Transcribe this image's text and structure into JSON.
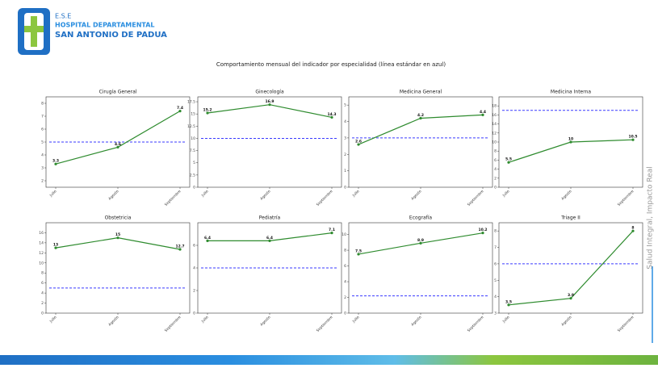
{
  "header": {
    "org": "E.S.E",
    "line1": "HOSPITAL DEPARTAMENTAL",
    "line2": "SAN ANTONIO DE PADUA",
    "title": "Comportamiento mensual del indicador por especialidad (línea estándar en azul)",
    "slogan": "Salud Integral, Impacto Real"
  },
  "chart_data": [
    {
      "type": "line",
      "title": "Cirugía General",
      "categories": [
        "Julio",
        "Agosto",
        "Septiembre"
      ],
      "values": [
        3.3,
        4.6,
        7.4
      ],
      "color": "#2e8b2e",
      "standard": 5,
      "standard_color": "#3a3aff",
      "ylim": [
        1.5,
        8.5
      ],
      "yticks": [
        2,
        3,
        4,
        5,
        6,
        7,
        8
      ]
    },
    {
      "type": "line",
      "title": "Ginecología",
      "categories": [
        "Julio",
        "Agosto",
        "Septiembre"
      ],
      "values": [
        15.2,
        16.9,
        14.3
      ],
      "color": "#2e8b2e",
      "standard": 10,
      "standard_color": "#3a3aff",
      "ylim": [
        0,
        18.5
      ],
      "yticks": [
        0,
        2.5,
        5,
        7.5,
        10,
        12.5,
        15,
        17.5
      ]
    },
    {
      "type": "line",
      "title": "Medicina General",
      "categories": [
        "Julio",
        "Agosto",
        "Septiembre"
      ],
      "values": [
        2.6,
        4.2,
        4.4
      ],
      "color": "#2e8b2e",
      "standard": 3,
      "standard_color": "#3a3aff",
      "ylim": [
        0,
        5.5
      ],
      "yticks": [
        0,
        1,
        2,
        3,
        4,
        5
      ]
    },
    {
      "type": "line",
      "title": "Medicina Interna",
      "categories": [
        "Julio",
        "Agosto",
        "Septiembre"
      ],
      "values": [
        5.5,
        10,
        10.5
      ],
      "color": "#2e8b2e",
      "standard": 17,
      "standard_color": "#3a3aff",
      "ylim": [
        0,
        20
      ],
      "yticks": [
        0,
        2,
        4,
        6,
        8,
        10,
        12,
        14,
        16,
        18
      ]
    },
    {
      "type": "line",
      "title": "Obstetricia",
      "categories": [
        "Julio",
        "Agosto",
        "Septiembre"
      ],
      "values": [
        13,
        15,
        12.7
      ],
      "color": "#2e8b2e",
      "standard": 5,
      "standard_color": "#3a3aff",
      "ylim": [
        0,
        18
      ],
      "yticks": [
        0,
        2,
        4,
        6,
        8,
        10,
        12,
        14,
        16
      ]
    },
    {
      "type": "line",
      "title": "Pediatría",
      "categories": [
        "Julio",
        "Agosto",
        "Septiembre"
      ],
      "values": [
        6.4,
        6.4,
        7.1
      ],
      "color": "#2e8b2e",
      "standard": 4,
      "standard_color": "#3a3aff",
      "ylim": [
        0,
        8
      ],
      "yticks": [
        0,
        2,
        4,
        6
      ]
    },
    {
      "type": "line",
      "title": "Ecografía",
      "categories": [
        "Julio",
        "Agosto",
        "Septiembre"
      ],
      "values": [
        7.5,
        8.9,
        10.2
      ],
      "color": "#2e8b2e",
      "standard": 2.2,
      "standard_color": "#3a3aff",
      "ylim": [
        0,
        11.5
      ],
      "yticks": [
        0,
        2,
        4,
        6,
        8,
        10
      ]
    },
    {
      "type": "line",
      "title": "Triage II",
      "categories": [
        "Julio",
        "Agosto",
        "Septiembre"
      ],
      "values": [
        3.5,
        3.9,
        8
      ],
      "color": "#2e8b2e",
      "standard": 6,
      "standard_color": "#3a3aff",
      "ylim": [
        3,
        8.5
      ],
      "yticks": [
        3,
        4,
        5,
        6,
        7,
        8
      ]
    }
  ]
}
